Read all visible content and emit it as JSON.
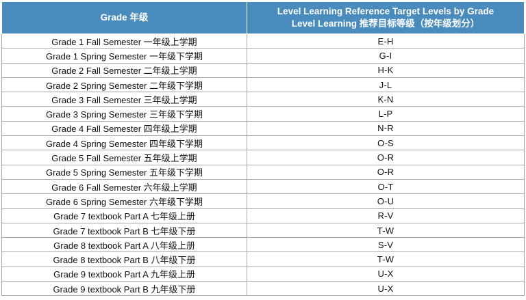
{
  "table": {
    "headers": {
      "grade": "Grade 年级",
      "level_line1": "Level Learning Reference Target Levels by Grade",
      "level_line2": "Level Learning 推荐目标等级（按年级划分）"
    },
    "rows": [
      {
        "grade": "Grade 1 Fall Semester 一年级上学期",
        "level": "E-H"
      },
      {
        "grade": "Grade 1 Spring Semester 一年级下学期",
        "level": "G-I"
      },
      {
        "grade": "Grade 2 Fall Semester 二年级上学期",
        "level": "H-K"
      },
      {
        "grade": "Grade 2 Spring Semester 二年级下学期",
        "level": "J-L"
      },
      {
        "grade": "Grade 3 Fall Semester 三年级上学期",
        "level": "K-N"
      },
      {
        "grade": "Grade 3 Spring Semester 三年级下学期",
        "level": "L-P"
      },
      {
        "grade": "Grade 4 Fall Semester 四年级上学期",
        "level": "N-R"
      },
      {
        "grade": "Grade 4 Spring Semester 四年级下学期",
        "level": "O-S"
      },
      {
        "grade": "Grade 5 Fall Semester 五年级上学期",
        "level": "O-R"
      },
      {
        "grade": "Grade 5 Spring Semester 五年级下学期",
        "level": "O-R"
      },
      {
        "grade": "Grade 6 Fall Semester 六年级上学期",
        "level": "O-T"
      },
      {
        "grade": "Grade 6 Spring Semester 六年级下学期",
        "level": "O-U"
      },
      {
        "grade": "Grade 7 textbook Part A 七年级上册",
        "level": "R-V"
      },
      {
        "grade": "Grade 7 textbook Part B 七年级下册",
        "level": "T-W"
      },
      {
        "grade": "Grade 8 textbook Part A 八年级上册",
        "level": "S-V"
      },
      {
        "grade": "Grade 8 textbook Part B 八年级下册",
        "level": "T-W"
      },
      {
        "grade": "Grade 9 textbook Part A 九年级上册",
        "level": "U-X"
      },
      {
        "grade": "Grade 9 textbook Part B 九年级下册",
        "level": "U-X"
      }
    ]
  },
  "colors": {
    "header_bg": "#4a8bbd",
    "header_text": "#ffffff",
    "grid_line": "#a8a8a8"
  }
}
